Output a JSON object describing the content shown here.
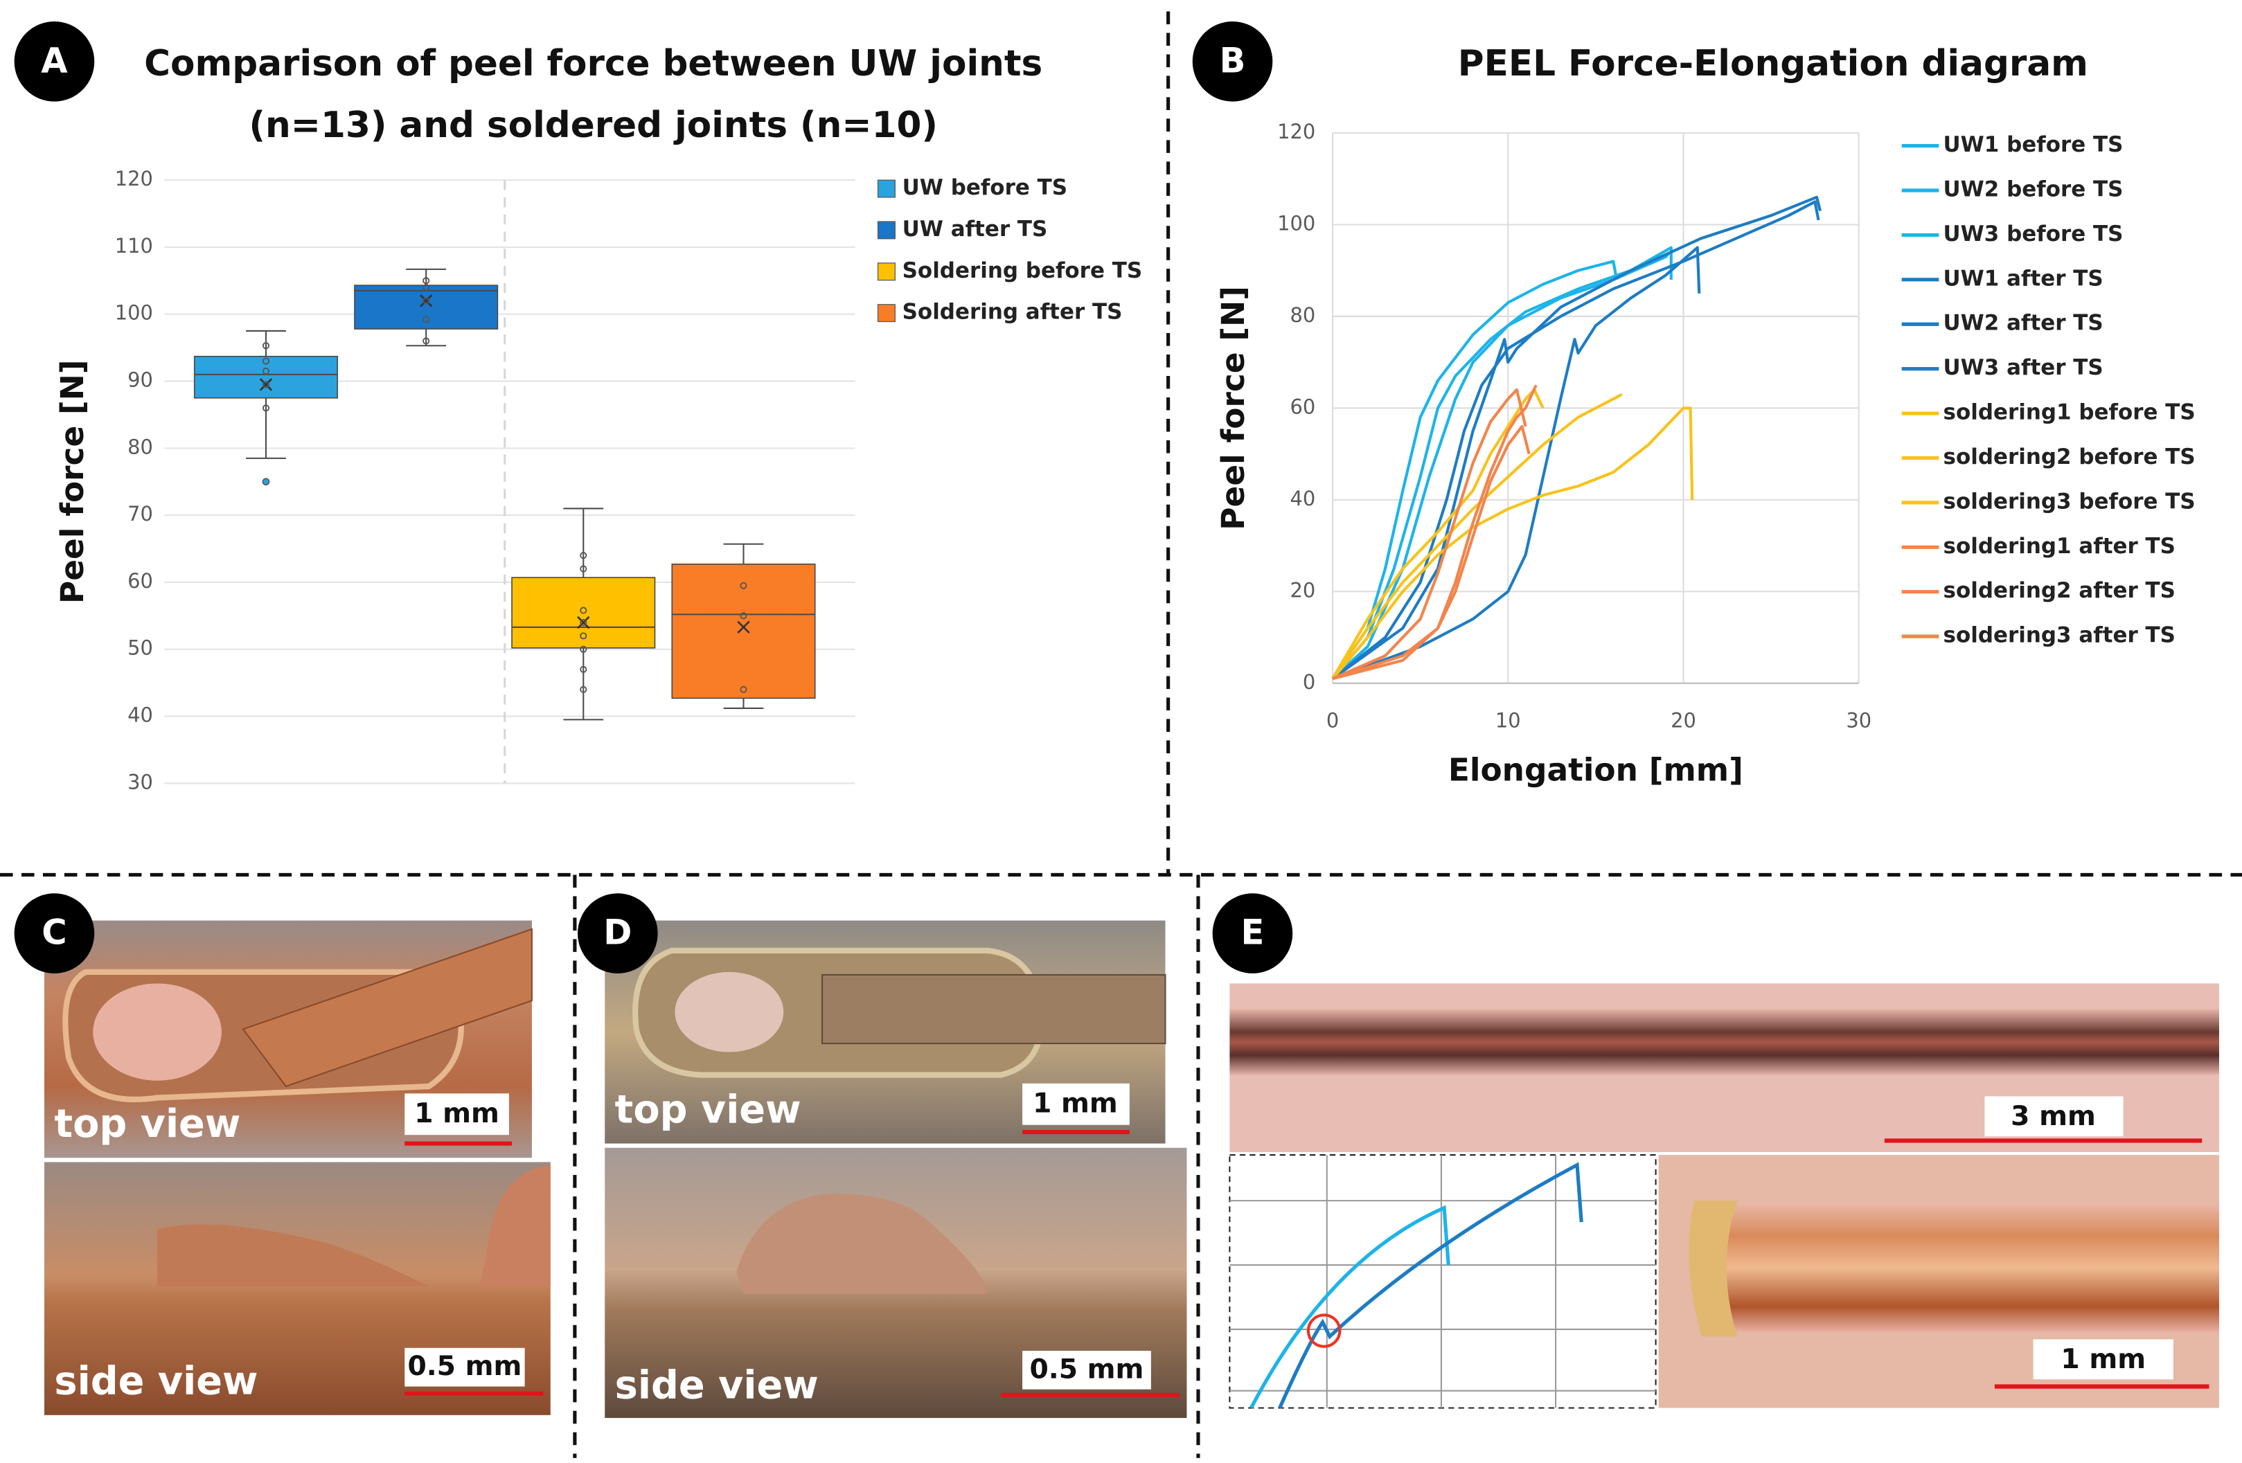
{
  "panel_labels": [
    "A",
    "B",
    "C",
    "D",
    "E"
  ],
  "chart_data": [
    {
      "type": "box",
      "title": [
        "Comparison of peel force between UW joints",
        "(n=13) and soldered joints (n=10)"
      ],
      "ylabel": "Peel force [N]",
      "ylim": [
        30,
        120
      ],
      "yticks": [
        30,
        40,
        50,
        60,
        70,
        80,
        90,
        100,
        110,
        120
      ],
      "grid": true,
      "legend": "right",
      "series": [
        {
          "name": "UW before TS",
          "color": "#2ba3de",
          "min": 78.5,
          "q1": 87.5,
          "median": 91,
          "q3": 93.7,
          "max": 97.5,
          "mean": 89.5,
          "outliers": [
            75
          ],
          "points": [
            86,
            89.5,
            91.5,
            93,
            95.3
          ]
        },
        {
          "name": "UW after TS",
          "color": "#1a76c8",
          "min": 95.3,
          "q1": 97.8,
          "median": 103.5,
          "q3": 104.3,
          "max": 106.7,
          "mean": 102,
          "outliers": [],
          "points": [
            96,
            99.2,
            102,
            104,
            105
          ]
        },
        {
          "name": "Soldering before TS",
          "color": "#ffc000",
          "min": 39.5,
          "q1": 50.2,
          "median": 53.3,
          "q3": 60.7,
          "max": 71,
          "mean": 54,
          "outliers": [],
          "points": [
            44,
            47,
            50,
            52,
            54,
            55.8,
            62,
            64
          ]
        },
        {
          "name": "Soldering after TS",
          "color": "#f97d27",
          "min": 41.2,
          "q1": 42.7,
          "median": 55.2,
          "q3": 62.7,
          "max": 65.7,
          "mean": 53.3,
          "outliers": [],
          "points": [
            44,
            55,
            59.5
          ]
        }
      ]
    },
    {
      "type": "line",
      "title": "PEEL Force-Elongation diagram",
      "xlabel": "Elongation [mm]",
      "ylabel": "Peel force [N]",
      "xlim": [
        0,
        30
      ],
      "xticks": [
        0,
        10,
        20,
        30
      ],
      "ylim": [
        0,
        120
      ],
      "yticks": [
        0,
        20,
        40,
        60,
        80,
        100,
        120
      ],
      "grid": true,
      "legend": "right",
      "series": [
        {
          "name": "UW1 before TS",
          "color": "#1cb4ea",
          "x": [
            0,
            2,
            3,
            4,
            5,
            6,
            8,
            10,
            12,
            14,
            16,
            16.2
          ],
          "values": [
            1,
            12,
            25,
            42,
            58,
            66,
            76,
            83,
            87,
            90,
            92,
            88
          ]
        },
        {
          "name": "UW2 before TS",
          "color": "#1cb4ea",
          "x": [
            0,
            2,
            3.5,
            5,
            6,
            7,
            9,
            11,
            14,
            17,
            19.3,
            19.3
          ],
          "values": [
            1,
            10,
            25,
            45,
            60,
            67,
            75,
            81,
            86,
            90,
            95,
            88
          ]
        },
        {
          "name": "UW3 before TS",
          "color": "#1cb4ea",
          "x": [
            0,
            2,
            4,
            5.5,
            7,
            8,
            10,
            13,
            16,
            19,
            19.2
          ],
          "values": [
            1,
            8,
            25,
            45,
            62,
            70,
            78,
            84,
            88,
            93,
            94
          ]
        },
        {
          "name": "UW1 after TS",
          "color": "#1c7cc4",
          "x": [
            0,
            3,
            5,
            6.5,
            7.5,
            8.5,
            10,
            13,
            16,
            20,
            23,
            26,
            27.5,
            27.7
          ],
          "values": [
            1,
            10,
            22,
            40,
            55,
            65,
            73,
            80,
            86,
            92,
            97,
            102,
            105,
            101
          ]
        },
        {
          "name": "UW2 after TS",
          "color": "#1c7cc4",
          "x": [
            0,
            4,
            6,
            7,
            8,
            9,
            9.8,
            10,
            10.5,
            13,
            17,
            21,
            25,
            27.6,
            27.8
          ],
          "values": [
            1,
            12,
            25,
            40,
            55,
            66,
            75,
            70,
            73,
            82,
            90,
            97,
            102,
            106,
            103
          ]
        },
        {
          "name": "UW3 after TS",
          "color": "#1c7cc4",
          "x": [
            0,
            5,
            8,
            10,
            11,
            12,
            13,
            13.8,
            14,
            15,
            17,
            19,
            20.8,
            20.9
          ],
          "values": [
            1,
            8,
            14,
            20,
            28,
            45,
            62,
            75,
            72,
            78,
            84,
            89,
            95,
            85
          ]
        },
        {
          "name": "soldering1 before TS",
          "color": "#f9c21b",
          "x": [
            0,
            2,
            4,
            6,
            8,
            10,
            12,
            14,
            16,
            16.5
          ],
          "values": [
            1,
            12,
            22,
            30,
            38,
            45,
            52,
            58,
            62,
            63
          ]
        },
        {
          "name": "soldering2 before TS",
          "color": "#f9c21b",
          "x": [
            0,
            2,
            4,
            6,
            8,
            10,
            12,
            14,
            16,
            18,
            20,
            20.4,
            20.5
          ],
          "values": [
            1,
            10,
            20,
            28,
            34,
            38,
            41,
            43,
            46,
            52,
            60,
            60,
            40
          ]
        },
        {
          "name": "soldering3 before TS",
          "color": "#f9c21b",
          "x": [
            0,
            2,
            4,
            6,
            8,
            9,
            10,
            11,
            11.5,
            12
          ],
          "values": [
            1,
            14,
            25,
            33,
            42,
            50,
            56,
            62,
            64,
            60
          ]
        },
        {
          "name": "soldering1 after TS",
          "color": "#f2844c",
          "x": [
            0,
            3,
            5,
            6,
            7,
            8,
            9,
            10,
            10.5,
            11
          ],
          "values": [
            1,
            6,
            14,
            24,
            36,
            48,
            57,
            62,
            64,
            56
          ]
        },
        {
          "name": "soldering2 after TS",
          "color": "#f2844c",
          "x": [
            0,
            4,
            6,
            7,
            8,
            9,
            10,
            10.5,
            11,
            11.6
          ],
          "values": [
            1,
            6,
            12,
            22,
            35,
            46,
            55,
            58,
            60,
            65
          ]
        },
        {
          "name": "soldering3 after TS",
          "color": "#f2844c",
          "x": [
            0,
            4,
            6,
            7,
            8,
            9,
            10,
            10.8,
            11.2
          ],
          "values": [
            1,
            5,
            12,
            20,
            32,
            44,
            52,
            56,
            50
          ]
        }
      ]
    }
  ],
  "photos": {
    "C": {
      "top_caption": "top view",
      "top_scale": "1 mm",
      "side_caption": "side view",
      "side_scale": "0.5 mm"
    },
    "D": {
      "top_caption": "top view",
      "top_scale": "1 mm",
      "side_caption": "side view",
      "side_scale": "0.5 mm"
    },
    "E": {
      "top_scale": "3 mm",
      "detail_scale": "1 mm"
    }
  }
}
